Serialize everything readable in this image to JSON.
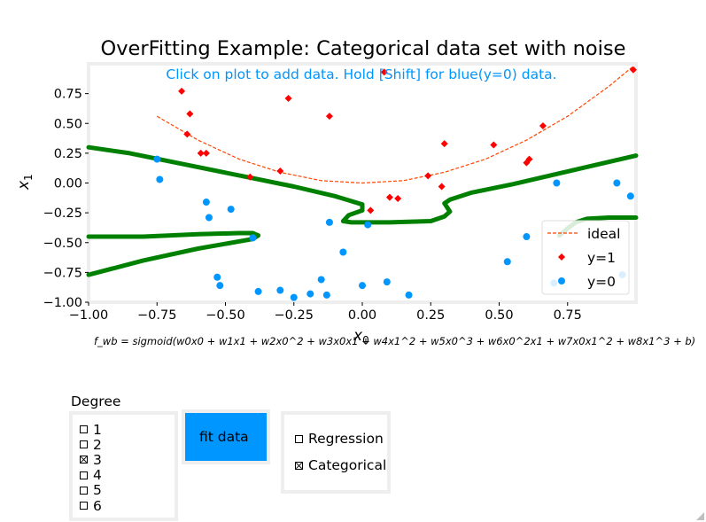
{
  "chart_data": {
    "type": "scatter",
    "title": "OverFitting Example: Categorical data set with noise",
    "annotation": "Click on plot to add data. Hold [Shift] for blue(y=0) data.",
    "xlabel": "x",
    "xlabel_sub": "0",
    "ylabel": "x",
    "ylabel_sub": "1",
    "xlim": [
      -1.0,
      1.0
    ],
    "ylim": [
      -1.0,
      1.0
    ],
    "x_ticks": [
      -1.0,
      -0.75,
      -0.5,
      -0.25,
      0.0,
      0.25,
      0.5,
      0.75
    ],
    "x_tick_labels": [
      "−1.00",
      "−0.75",
      "−0.50",
      "−0.25",
      "0.00",
      "0.25",
      "0.50",
      "0.75"
    ],
    "y_ticks": [
      -1.0,
      -0.75,
      -0.5,
      -0.25,
      0.0,
      0.25,
      0.5,
      0.75
    ],
    "y_tick_labels": [
      "−1.00",
      "−0.75",
      "−0.50",
      "−0.25",
      "0.00",
      "0.25",
      "0.50",
      "0.75"
    ],
    "grid": false,
    "legend_position": "bottom-right",
    "formula": "f_wb = sigmoid(w0x0 + w1x1 + w2x0^2 + w3x0x1 + w4x1^2 + w5x0^3 + w6x0^2x1 + w7x0x1^2 + w8x1^3 + b)",
    "series": [
      {
        "name": "ideal",
        "kind": "line",
        "style": "dashed",
        "color": "#ff4500",
        "x": [
          -0.75,
          -0.6,
          -0.45,
          -0.3,
          -0.15,
          0.0,
          0.15,
          0.3,
          0.45,
          0.6,
          0.75,
          0.9,
          0.99
        ],
        "y": [
          0.56,
          0.36,
          0.2,
          0.09,
          0.02,
          0.0,
          0.02,
          0.09,
          0.2,
          0.36,
          0.56,
          0.81,
          0.98
        ]
      },
      {
        "name": "y=1",
        "kind": "scatter",
        "marker": "diamond",
        "color": "#ff0000",
        "x": [
          -0.66,
          -0.64,
          -0.63,
          -0.59,
          -0.57,
          -0.41,
          -0.3,
          -0.27,
          -0.12,
          0.03,
          0.08,
          0.1,
          0.13,
          0.24,
          0.29,
          0.3,
          0.48,
          0.6,
          0.61,
          0.66,
          0.99
        ],
        "y": [
          0.77,
          0.41,
          0.58,
          0.25,
          0.25,
          0.05,
          0.1,
          0.71,
          0.56,
          -0.23,
          0.93,
          -0.12,
          -0.13,
          0.06,
          -0.03,
          0.33,
          0.32,
          0.17,
          0.2,
          0.48,
          0.95
        ]
      },
      {
        "name": "y=0",
        "kind": "scatter",
        "marker": "circle",
        "color": "#0096ff",
        "x": [
          -0.75,
          -0.74,
          -0.57,
          -0.56,
          -0.53,
          -0.52,
          -0.48,
          -0.4,
          -0.38,
          -0.3,
          -0.25,
          -0.19,
          -0.15,
          -0.13,
          -0.12,
          -0.07,
          0.0,
          0.02,
          0.09,
          0.17,
          0.53,
          0.6,
          0.7,
          0.71,
          0.93,
          0.95,
          0.98
        ],
        "y": [
          0.2,
          0.03,
          -0.16,
          -0.29,
          -0.79,
          -0.86,
          -0.22,
          -0.46,
          -0.91,
          -0.9,
          -0.96,
          -0.93,
          -0.81,
          -0.94,
          -0.33,
          -0.58,
          -0.86,
          -0.35,
          -0.83,
          -0.94,
          -0.66,
          -0.45,
          -0.84,
          0.0,
          0.0,
          -0.77,
          -0.11
        ]
      }
    ],
    "decision_boundary": {
      "color": "#008000",
      "segments": [
        {
          "x": [
            -1.0,
            -0.85,
            -0.7,
            -0.55,
            -0.4,
            -0.25,
            -0.1,
            0.0,
            0.0,
            -0.05,
            -0.07,
            -0.04,
            0.0,
            0.1,
            0.25,
            0.3,
            0.32,
            0.3,
            0.32,
            0.4,
            0.55,
            0.7,
            0.85,
            1.0
          ],
          "y": [
            0.3,
            0.25,
            0.18,
            0.11,
            0.04,
            -0.03,
            -0.11,
            -0.18,
            -0.23,
            -0.27,
            -0.32,
            -0.33,
            -0.33,
            -0.33,
            -0.32,
            -0.28,
            -0.24,
            -0.17,
            -0.14,
            -0.08,
            -0.01,
            0.07,
            0.15,
            0.23
          ]
        },
        {
          "x": [
            -1.0,
            -0.8,
            -0.6,
            -0.45,
            -0.4,
            -0.38,
            -0.4,
            -0.6,
            -0.8,
            -1.0
          ],
          "y": [
            -0.45,
            -0.45,
            -0.43,
            -0.42,
            -0.42,
            -0.44,
            -0.47,
            -0.55,
            -0.65,
            -0.77
          ]
        },
        {
          "x": [
            1.0,
            0.9,
            0.82,
            0.78,
            0.75,
            0.72
          ],
          "y": [
            -0.29,
            -0.29,
            -0.3,
            -0.33,
            -0.38,
            -0.44
          ]
        }
      ]
    }
  },
  "controls": {
    "degree_title": "Degree",
    "degree_options": [
      "1",
      "2",
      "3",
      "4",
      "5",
      "6"
    ],
    "degree_selected": "3",
    "fit_button": "fit data",
    "mode_options": [
      "Regression",
      "Categorical"
    ],
    "mode_selected": "Categorical"
  }
}
